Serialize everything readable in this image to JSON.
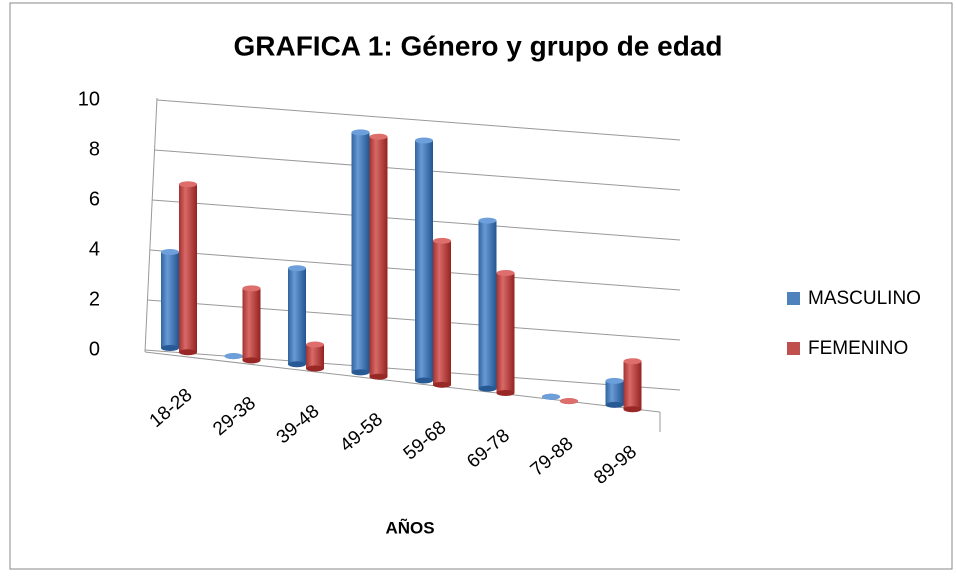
{
  "chart_data": {
    "type": "bar3d",
    "title": "GRAFICA 1: Género y grupo de edad",
    "x_label": "AÑOS",
    "categories": [
      "18-28",
      "29-38",
      "39-48",
      "49-58",
      "59-68",
      "69-78",
      "79-88",
      "89-98"
    ],
    "series": [
      {
        "name": "MASCULINO",
        "color": "#4f81bd",
        "values": [
          4,
          0,
          4,
          10,
          10,
          7,
          0,
          1
        ]
      },
      {
        "name": "FEMENINO",
        "color": "#c0504d",
        "values": [
          7,
          3,
          1,
          10,
          6,
          5,
          0,
          2
        ]
      }
    ],
    "ylim": [
      0,
      10
    ],
    "yticks": [
      0,
      2,
      4,
      6,
      8,
      10
    ],
    "grid": true,
    "legend": "right"
  }
}
